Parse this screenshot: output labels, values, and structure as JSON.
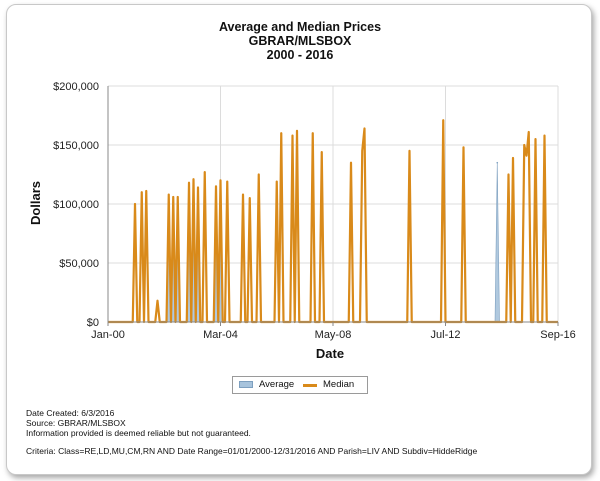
{
  "chart_data": {
    "type": "area",
    "title": "Average and Median Prices",
    "subtitle": "GBRAR/MLSBOX",
    "period": "2000 - 2016",
    "xlabel": "Date",
    "ylabel": "Dollars",
    "x_ticks": [
      "Jan-00",
      "Mar-04",
      "May-08",
      "Jul-12",
      "Sep-16"
    ],
    "y_ticks": [
      "$0",
      "$50,000",
      "$100,000",
      "$150,000",
      "$200,000"
    ],
    "xlim": [
      "2000-01",
      "2016-09"
    ],
    "ylim": [
      0,
      200000
    ],
    "grid": true,
    "legend_position": "bottom-center",
    "series": [
      {
        "name": "Average",
        "color": "#a7c3dc",
        "points": [
          [
            "2002-04",
            108000
          ],
          [
            "2002-06",
            80000
          ],
          [
            "2002-08",
            106000
          ],
          [
            "2003-01",
            115000
          ],
          [
            "2003-03",
            112000
          ],
          [
            "2003-05",
            110000
          ],
          [
            "2004-01",
            110000
          ],
          [
            "2004-03",
            118000
          ],
          [
            "2014-06",
            135000
          ]
        ]
      },
      {
        "name": "Median",
        "color": "#d98a1a",
        "points": [
          [
            "2001-01",
            100000
          ],
          [
            "2001-04",
            110000
          ],
          [
            "2001-06",
            111000
          ],
          [
            "2001-11",
            18000
          ],
          [
            "2002-04",
            108000
          ],
          [
            "2002-06",
            106000
          ],
          [
            "2002-08",
            106000
          ],
          [
            "2003-01",
            118000
          ],
          [
            "2003-03",
            121000
          ],
          [
            "2003-05",
            114000
          ],
          [
            "2003-08",
            127000
          ],
          [
            "2004-01",
            115000
          ],
          [
            "2004-03",
            120000
          ],
          [
            "2004-06",
            119000
          ],
          [
            "2005-01",
            108000
          ],
          [
            "2005-04",
            105000
          ],
          [
            "2005-08",
            125000
          ],
          [
            "2006-04",
            119000
          ],
          [
            "2006-06",
            160000
          ],
          [
            "2006-11",
            158000
          ],
          [
            "2007-01",
            162000
          ],
          [
            "2007-08",
            160000
          ],
          [
            "2007-12",
            144000
          ],
          [
            "2009-01",
            135000
          ],
          [
            "2009-06",
            145000
          ],
          [
            "2009-07",
            164000
          ],
          [
            "2011-03",
            145000
          ],
          [
            "2012-06",
            171000
          ],
          [
            "2013-03",
            148000
          ],
          [
            "2014-11",
            125000
          ],
          [
            "2015-01",
            139000
          ],
          [
            "2015-06",
            150000
          ],
          [
            "2015-07",
            141000
          ],
          [
            "2015-08",
            161000
          ],
          [
            "2015-11",
            155000
          ],
          [
            "2016-03",
            158000
          ]
        ]
      }
    ],
    "legend": [
      "Average",
      "Median"
    ]
  },
  "footer": {
    "date_created": "Date Created: 6/3/2016",
    "source": "Source: GBRAR/MLSBOX",
    "disclaimer": "Information provided is deemed reliable but not guaranteed.",
    "criteria": "Criteria: Class=RE,LD,MU,CM,RN AND Date Range=01/01/2000-12/31/2016 AND Parish=LIV AND Subdiv=HiddeRidge"
  }
}
